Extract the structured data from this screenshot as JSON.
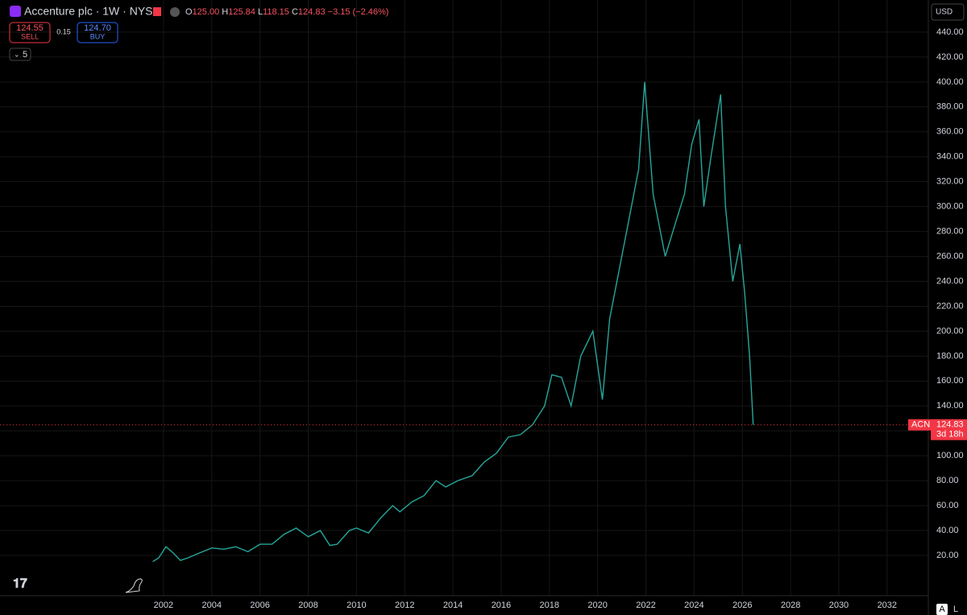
{
  "header": {
    "symbol": "Accenture plc · 1W · NYSE",
    "open_label": "O",
    "open": "125.00",
    "high_label": "H",
    "high": "125.84",
    "low_label": "L",
    "low": "118.15",
    "close_label": "C",
    "close": "124.83",
    "change": "−3.15 (−2.46%)"
  },
  "trade": {
    "sell_price": "124.55",
    "sell": "SELL",
    "spread": "0.15",
    "buy_price": "124.70",
    "buy": "BUY"
  },
  "indicators_count": "5",
  "currency": "USD",
  "scale_buttons": [
    "A",
    "L"
  ],
  "chart_data": {
    "type": "line",
    "x": [
      2001.55,
      2001.8,
      2002.1,
      2002.4,
      2002.7,
      2003.0,
      2003.5,
      2004.0,
      2004.5,
      2005.0,
      2005.5,
      2006.0,
      2006.5,
      2007.0,
      2007.5,
      2008.0,
      2008.5,
      2008.9,
      2009.2,
      2009.7,
      2010.0,
      2010.5,
      2011.0,
      2011.5,
      2011.8,
      2012.3,
      2012.8,
      2013.3,
      2013.7,
      2014.2,
      2014.8,
      2015.3,
      2015.8,
      2016.3,
      2016.8,
      2017.3,
      2017.8,
      2018.1,
      2018.5,
      2018.9,
      2019.3,
      2019.8,
      2020.2,
      2020.5,
      2020.9,
      2021.3,
      2021.7,
      2021.95,
      2022.3,
      2022.8,
      2023.2,
      2023.6,
      2023.9,
      2024.2,
      2024.4,
      2024.7,
      2024.9,
      2025.1,
      2025.3,
      2025.6,
      2025.9,
      2026.1,
      2026.3,
      2026.45
    ],
    "series": [
      {
        "name": "ACN",
        "color": "#26a69a",
        "values": [
          15,
          18,
          27,
          22,
          16,
          18,
          22,
          26,
          25,
          27,
          23,
          29,
          29,
          37,
          42,
          35,
          40,
          28,
          29,
          40,
          42,
          38,
          50,
          60,
          55,
          63,
          68,
          80,
          75,
          80,
          84,
          95,
          102,
          115,
          117,
          125,
          140,
          165,
          163,
          140,
          180,
          200,
          145,
          210,
          250,
          290,
          330,
          400,
          310,
          260,
          285,
          310,
          350,
          370,
          300,
          340,
          365,
          390,
          300,
          240,
          270,
          230,
          180,
          124.83
        ]
      }
    ],
    "last_price": {
      "value": 124.83,
      "label": "124.83"
    },
    "countdown": "3d 18h",
    "xlim": [
      1995.22,
      2033.71
    ],
    "ylim": [
      -12.3,
      465.8
    ],
    "xticks": [
      2002,
      2004,
      2006,
      2008,
      2010,
      2012,
      2014,
      2016,
      2018,
      2020,
      2022,
      2024,
      2026,
      2028,
      2030,
      2032
    ],
    "yticks": [
      {
        "value": 20,
        "label": "20.00"
      },
      {
        "value": 40,
        "label": "40.00"
      },
      {
        "value": 60,
        "label": "60.00"
      },
      {
        "value": 80,
        "label": "80.00"
      },
      {
        "value": 100,
        "label": "100.00"
      },
      {
        "value": 120,
        "label": "120.00"
      },
      {
        "value": 140,
        "label": "140.00"
      },
      {
        "value": 160,
        "label": "160.00"
      },
      {
        "value": 180,
        "label": "180.00"
      },
      {
        "value": 200,
        "label": "200.00"
      },
      {
        "value": 220,
        "label": "220.00"
      },
      {
        "value": 240,
        "label": "240.00"
      },
      {
        "value": 260,
        "label": "260.00"
      },
      {
        "value": 280,
        "label": "280.00"
      },
      {
        "value": 300,
        "label": "300.00"
      },
      {
        "value": 320,
        "label": "320.00"
      },
      {
        "value": 340,
        "label": "340.00"
      },
      {
        "value": 360,
        "label": "360.00"
      },
      {
        "value": 380,
        "label": "380.00"
      },
      {
        "value": 400,
        "label": "400.00"
      },
      {
        "value": 420,
        "label": "420.00"
      },
      {
        "value": 440,
        "label": "440.00"
      }
    ],
    "grid": true
  }
}
